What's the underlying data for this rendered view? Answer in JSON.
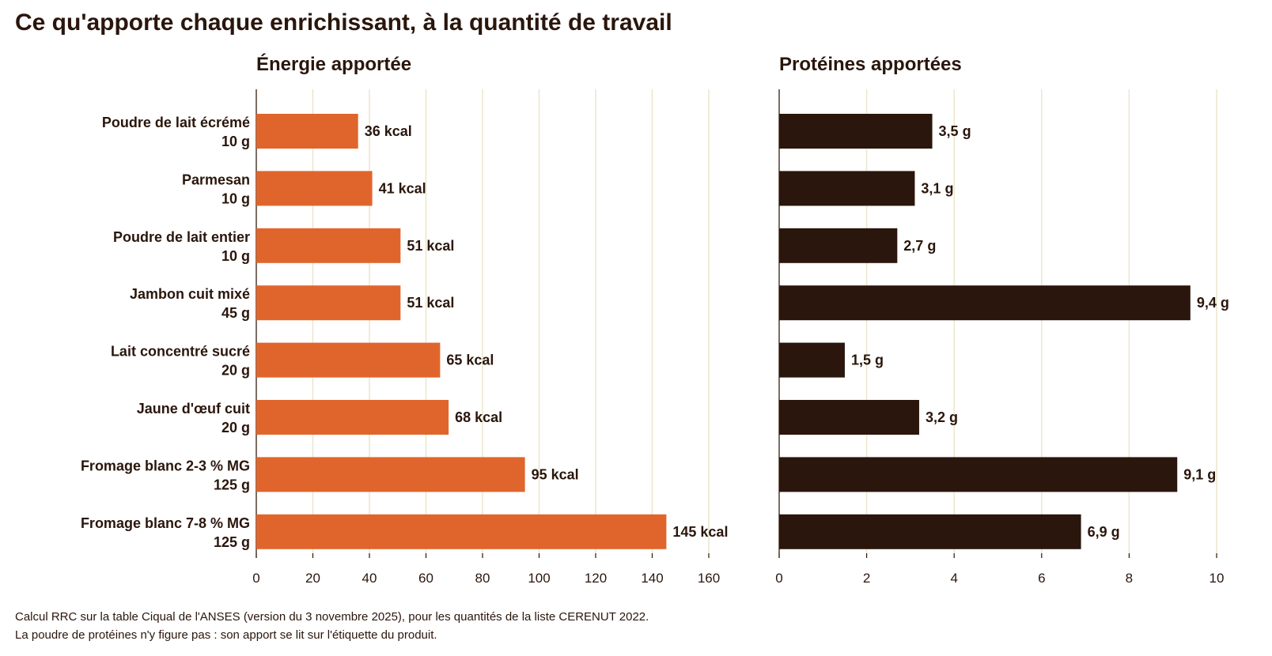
{
  "title": "Ce qu'apporte chaque enrichissant, à la quantité de travail",
  "footnotes": [
    "Calcul RRC sur la table Ciqual de l'ANSES (version du 3 novembre 2025), pour les quantités de la liste CERENUT 2022.",
    "La poudre de protéines n'y figure pas : son apport se lit sur l'étiquette du produit."
  ],
  "colors": {
    "energy_bar": "#e0652c",
    "protein_bar": "#2a160c",
    "grid": "#ece6cc",
    "text": "#2a160c"
  },
  "chart_data": [
    {
      "type": "bar",
      "orientation": "horizontal",
      "title": "Énergie apportée",
      "categories": [
        {
          "name": "Poudre de lait écrémé",
          "qty": "10 g"
        },
        {
          "name": "Parmesan",
          "qty": "10 g"
        },
        {
          "name": "Poudre de lait entier",
          "qty": "10 g"
        },
        {
          "name": "Jambon cuit mixé",
          "qty": "45 g"
        },
        {
          "name": "Lait concentré sucré",
          "qty": "20 g"
        },
        {
          "name": "Jaune d'œuf cuit",
          "qty": "20 g"
        },
        {
          "name": "Fromage blanc 2-3 % MG",
          "qty": "125 g"
        },
        {
          "name": "Fromage blanc 7-8 % MG",
          "qty": "125 g"
        }
      ],
      "values": [
        36,
        41,
        51,
        51,
        65,
        68,
        95,
        145
      ],
      "value_labels": [
        "36 kcal",
        "41 kcal",
        "51 kcal",
        "51 kcal",
        "65 kcal",
        "68 kcal",
        "95 kcal",
        "145 kcal"
      ],
      "xlim": [
        0,
        160
      ],
      "xticks": [
        0,
        20,
        40,
        60,
        80,
        100,
        120,
        140,
        160
      ],
      "xtick_labels": [
        "0",
        "20",
        "40",
        "60",
        "80",
        "100",
        "120",
        "140",
        "160"
      ],
      "grid": true
    },
    {
      "type": "bar",
      "orientation": "horizontal",
      "title": "Protéines apportées",
      "values": [
        3.5,
        3.1,
        2.7,
        9.4,
        1.5,
        3.2,
        9.1,
        6.9
      ],
      "value_labels": [
        "3,5 g",
        "3,1 g",
        "2,7 g",
        "9,4 g",
        "1,5 g",
        "3,2 g",
        "9,1 g",
        "6,9 g"
      ],
      "xlim": [
        0,
        10
      ],
      "xticks": [
        0,
        2,
        4,
        6,
        8,
        10
      ],
      "xtick_labels": [
        "0",
        "2",
        "4",
        "6",
        "8",
        "10"
      ],
      "grid": true
    }
  ]
}
